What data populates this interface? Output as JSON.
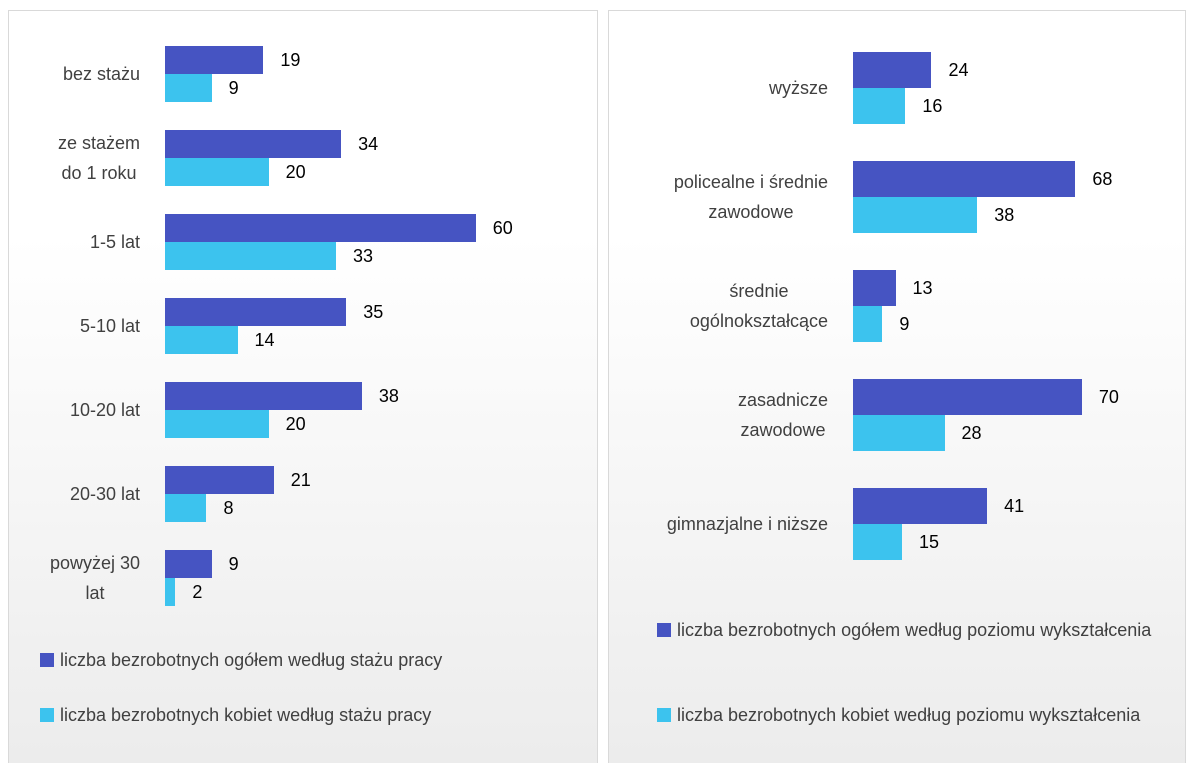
{
  "chart_data": [
    {
      "type": "bar",
      "orientation": "horizontal",
      "categories": [
        "bez stażu",
        "ze stażem\ndo 1 roku",
        "1-5 lat",
        "5-10 lat",
        "10-20 lat",
        "20-30 lat",
        "powyżej 30\nlat"
      ],
      "series": [
        {
          "name": "liczba bezrobotnych ogółem według stażu pracy",
          "color": "#4654c2",
          "values": [
            19,
            34,
            60,
            35,
            38,
            21,
            9
          ]
        },
        {
          "name": "liczba bezrobotnych kobiet według stażu pracy",
          "color": "#3cc3ee",
          "values": [
            9,
            20,
            33,
            14,
            20,
            8,
            2
          ]
        }
      ],
      "legend": "bottom"
    },
    {
      "type": "bar",
      "orientation": "horizontal",
      "categories": [
        "wyższe",
        "policealne i średnie\nzawodowe",
        "średnie\nogólnokształcące",
        "zasadnicze\nzawodowe",
        "gimnazjalne i niższe"
      ],
      "series": [
        {
          "name": "liczba bezrobotnych ogółem według poziomu wykształcenia",
          "color": "#4654c2",
          "values": [
            24,
            68,
            13,
            70,
            41
          ]
        },
        {
          "name": "liczba bezrobotnych kobiet według poziomu wykształcenia",
          "color": "#3cc3ee",
          "values": [
            16,
            38,
            9,
            28,
            15
          ]
        }
      ],
      "legend": "bottom"
    }
  ]
}
